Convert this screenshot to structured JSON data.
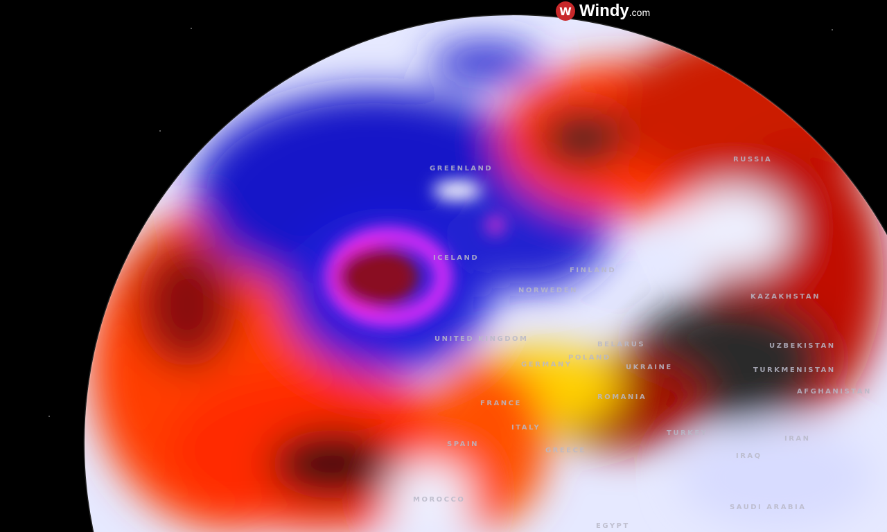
{
  "brand": {
    "name": "Windy",
    "suffix": ".com",
    "icon": "windy-logo-icon",
    "color": "#c8282a"
  },
  "labels": {
    "greenland": "GREENLAND",
    "iceland": "ICELAND",
    "russia": "RUSSIA",
    "finland": "FINLAND",
    "norweden": "NORWEDEN",
    "uk": "UNITED KINGDOM",
    "belarus": "BELARUS",
    "poland": "POLAND",
    "germany": "GERMANY",
    "ukraine": "UKRAINE",
    "kazakhstan": "KAZAKHSTAN",
    "uzbekistan": "UZBEKISTAN",
    "turkmenistan": "TURKMENISTAN",
    "afghanistan": "AFGHANISTAN",
    "romania": "ROMANIA",
    "france": "FRANCE",
    "spain": "SPAIN",
    "italy": "ITALY",
    "greece": "GREECE",
    "turkey": "TURKEY",
    "iran": "IRAN",
    "iraq": "IRAQ",
    "morocco": "MOROCCO",
    "saudi_arabia": "SAUDI ARABIA",
    "egypt": "EGYPT"
  },
  "colors": {
    "cold": "#1a1ad0",
    "cyclone": "#e030e0",
    "warm": "#ff3a00",
    "hot": "#2a2a2a",
    "neutral": "#e8ecff"
  }
}
